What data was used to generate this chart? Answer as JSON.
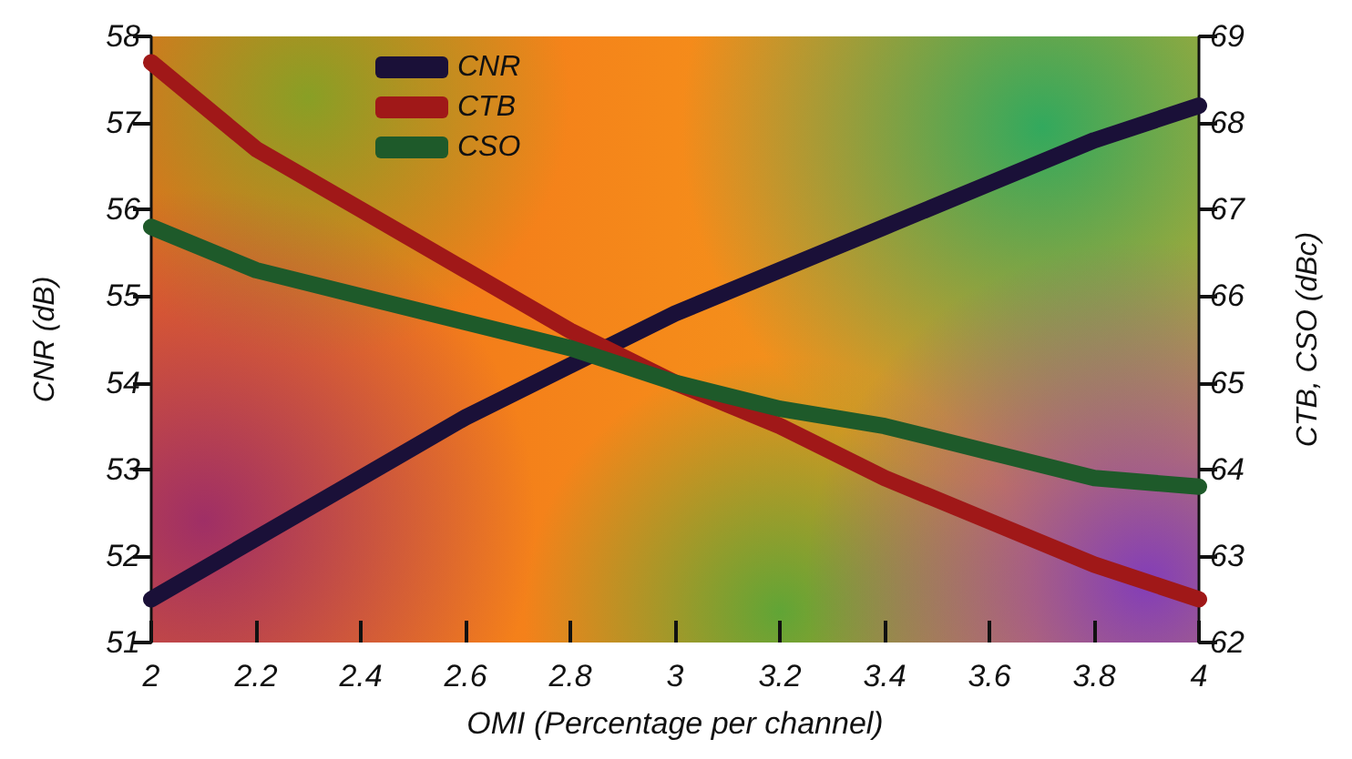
{
  "chart_data": {
    "type": "line",
    "xlabel": "OMI (Percentage per channel)",
    "ylabel": "CNR (dB)",
    "y2label": "CTB, CSO (dBc)",
    "x": [
      2,
      2.2,
      2.4,
      2.6,
      2.8,
      3,
      3.2,
      3.4,
      3.6,
      3.8,
      4
    ],
    "series": [
      {
        "name": "CNR",
        "color": "#1a1038",
        "values": [
          51.5,
          52.2,
          52.9,
          53.6,
          54.2,
          54.8,
          55.3,
          55.8,
          56.3,
          56.8,
          57.2
        ]
      },
      {
        "name": "CTB",
        "color": "#a01818",
        "axis": "y2",
        "values": [
          68.7,
          67.7,
          67.0,
          66.3,
          65.6,
          65.0,
          64.5,
          63.9,
          63.4,
          62.9,
          62.5
        ]
      },
      {
        "name": "CSO",
        "color": "#1e5a2a",
        "axis": "y2",
        "values": [
          66.8,
          66.3,
          66.0,
          65.7,
          65.4,
          65.0,
          64.7,
          64.5,
          64.2,
          63.9,
          63.8
        ]
      }
    ],
    "xlim": [
      2,
      4
    ],
    "xticks": [
      2,
      2.2,
      2.4,
      2.6,
      2.8,
      3,
      3.2,
      3.4,
      3.6,
      3.8,
      4
    ],
    "ylim": [
      51,
      58
    ],
    "yticks": [
      51,
      52,
      53,
      54,
      55,
      56,
      57,
      58
    ],
    "y2lim": [
      62,
      69
    ],
    "y2ticks": [
      62,
      63,
      64,
      65,
      66,
      67,
      68,
      69
    ],
    "grid": false,
    "legend": "top left",
    "marker": "none",
    "line_style": "solid"
  }
}
